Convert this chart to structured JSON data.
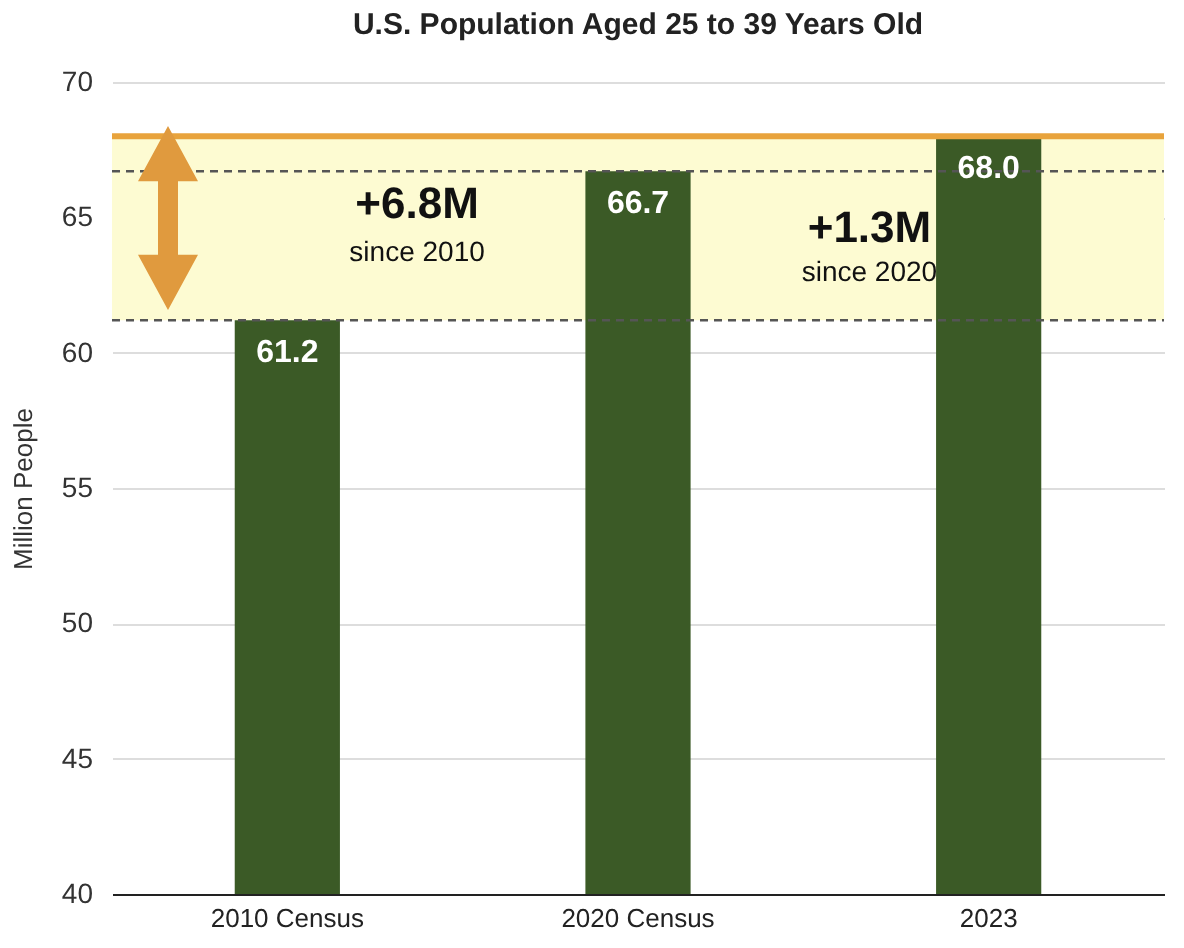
{
  "chart_data": {
    "type": "bar",
    "title": "U.S. Population Aged 25 to 39 Years Old",
    "ylabel": "Million People",
    "categories": [
      "2010 Census",
      "2020 Census",
      "2023"
    ],
    "series": [
      {
        "color": "#3b5a26",
        "values": [
          61.2,
          66.7,
          68.0
        ]
      }
    ],
    "value_labels": [
      "61.2",
      "66.7",
      "68.0"
    ],
    "ylim": [
      40,
      70
    ],
    "yticks": [
      40,
      45,
      50,
      55,
      60,
      65,
      70
    ],
    "grid": "y",
    "bands": [
      {
        "axis": "y",
        "from": 61.2,
        "to": 68.0,
        "color": "#fdfbd2"
      }
    ],
    "ref_lines": [
      {
        "axis": "y",
        "value": 68.0,
        "color": "#e8a33c",
        "line_style": "solid"
      },
      {
        "axis": "y",
        "value": 61.2,
        "color": "#555555",
        "line_style": "dashed"
      },
      {
        "axis": "y",
        "value": 66.7,
        "color": "#555555",
        "line_style": "dashed"
      }
    ],
    "annotations": [
      "+6.8M",
      "since 2010",
      "+1.3M",
      "since 2020"
    ]
  }
}
